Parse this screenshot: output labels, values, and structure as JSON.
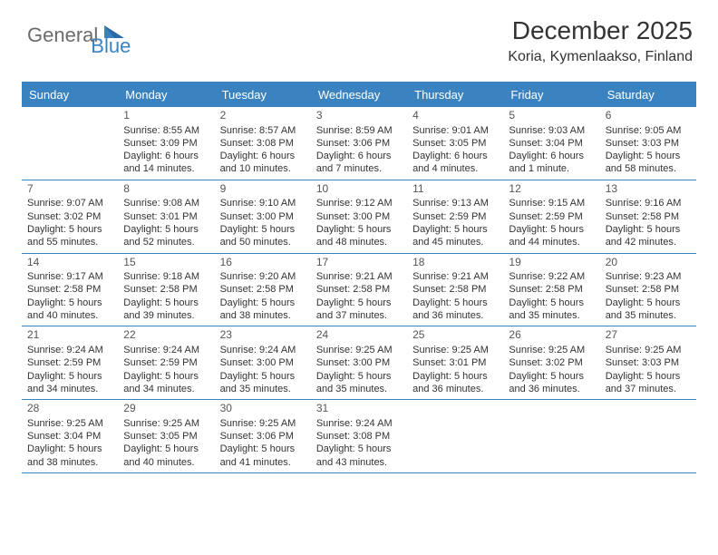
{
  "logo": {
    "word1": "General",
    "word2": "Blue"
  },
  "header": {
    "title": "December 2025",
    "location": "Koria, Kymenlaakso, Finland"
  },
  "style": {
    "accent": "#3b83c0",
    "accent_dark": "#2b6aa8",
    "text": "#333333",
    "logo_gray": "#6b6b6b",
    "bg": "#ffffff",
    "header_font_size": 28,
    "subtitle_font_size": 16,
    "dayhead_font_size": 13,
    "cell_font_size": 11,
    "daynum_font_size": 12
  },
  "days_of_week": [
    "Sunday",
    "Monday",
    "Tuesday",
    "Wednesday",
    "Thursday",
    "Friday",
    "Saturday"
  ],
  "weeks": [
    [
      {
        "empty": true
      },
      {
        "n": "1",
        "sr": "8:55 AM",
        "ss": "3:09 PM",
        "dl": "6 hours and 14 minutes."
      },
      {
        "n": "2",
        "sr": "8:57 AM",
        "ss": "3:08 PM",
        "dl": "6 hours and 10 minutes."
      },
      {
        "n": "3",
        "sr": "8:59 AM",
        "ss": "3:06 PM",
        "dl": "6 hours and 7 minutes."
      },
      {
        "n": "4",
        "sr": "9:01 AM",
        "ss": "3:05 PM",
        "dl": "6 hours and 4 minutes."
      },
      {
        "n": "5",
        "sr": "9:03 AM",
        "ss": "3:04 PM",
        "dl": "6 hours and 1 minute."
      },
      {
        "n": "6",
        "sr": "9:05 AM",
        "ss": "3:03 PM",
        "dl": "5 hours and 58 minutes."
      }
    ],
    [
      {
        "n": "7",
        "sr": "9:07 AM",
        "ss": "3:02 PM",
        "dl": "5 hours and 55 minutes."
      },
      {
        "n": "8",
        "sr": "9:08 AM",
        "ss": "3:01 PM",
        "dl": "5 hours and 52 minutes."
      },
      {
        "n": "9",
        "sr": "9:10 AM",
        "ss": "3:00 PM",
        "dl": "5 hours and 50 minutes."
      },
      {
        "n": "10",
        "sr": "9:12 AM",
        "ss": "3:00 PM",
        "dl": "5 hours and 48 minutes."
      },
      {
        "n": "11",
        "sr": "9:13 AM",
        "ss": "2:59 PM",
        "dl": "5 hours and 45 minutes."
      },
      {
        "n": "12",
        "sr": "9:15 AM",
        "ss": "2:59 PM",
        "dl": "5 hours and 44 minutes."
      },
      {
        "n": "13",
        "sr": "9:16 AM",
        "ss": "2:58 PM",
        "dl": "5 hours and 42 minutes."
      }
    ],
    [
      {
        "n": "14",
        "sr": "9:17 AM",
        "ss": "2:58 PM",
        "dl": "5 hours and 40 minutes."
      },
      {
        "n": "15",
        "sr": "9:18 AM",
        "ss": "2:58 PM",
        "dl": "5 hours and 39 minutes."
      },
      {
        "n": "16",
        "sr": "9:20 AM",
        "ss": "2:58 PM",
        "dl": "5 hours and 38 minutes."
      },
      {
        "n": "17",
        "sr": "9:21 AM",
        "ss": "2:58 PM",
        "dl": "5 hours and 37 minutes."
      },
      {
        "n": "18",
        "sr": "9:21 AM",
        "ss": "2:58 PM",
        "dl": "5 hours and 36 minutes."
      },
      {
        "n": "19",
        "sr": "9:22 AM",
        "ss": "2:58 PM",
        "dl": "5 hours and 35 minutes."
      },
      {
        "n": "20",
        "sr": "9:23 AM",
        "ss": "2:58 PM",
        "dl": "5 hours and 35 minutes."
      }
    ],
    [
      {
        "n": "21",
        "sr": "9:24 AM",
        "ss": "2:59 PM",
        "dl": "5 hours and 34 minutes."
      },
      {
        "n": "22",
        "sr": "9:24 AM",
        "ss": "2:59 PM",
        "dl": "5 hours and 34 minutes."
      },
      {
        "n": "23",
        "sr": "9:24 AM",
        "ss": "3:00 PM",
        "dl": "5 hours and 35 minutes."
      },
      {
        "n": "24",
        "sr": "9:25 AM",
        "ss": "3:00 PM",
        "dl": "5 hours and 35 minutes."
      },
      {
        "n": "25",
        "sr": "9:25 AM",
        "ss": "3:01 PM",
        "dl": "5 hours and 36 minutes."
      },
      {
        "n": "26",
        "sr": "9:25 AM",
        "ss": "3:02 PM",
        "dl": "5 hours and 36 minutes."
      },
      {
        "n": "27",
        "sr": "9:25 AM",
        "ss": "3:03 PM",
        "dl": "5 hours and 37 minutes."
      }
    ],
    [
      {
        "n": "28",
        "sr": "9:25 AM",
        "ss": "3:04 PM",
        "dl": "5 hours and 38 minutes."
      },
      {
        "n": "29",
        "sr": "9:25 AM",
        "ss": "3:05 PM",
        "dl": "5 hours and 40 minutes."
      },
      {
        "n": "30",
        "sr": "9:25 AM",
        "ss": "3:06 PM",
        "dl": "5 hours and 41 minutes."
      },
      {
        "n": "31",
        "sr": "9:24 AM",
        "ss": "3:08 PM",
        "dl": "5 hours and 43 minutes."
      },
      {
        "empty": true
      },
      {
        "empty": true
      },
      {
        "empty": true
      }
    ]
  ],
  "labels": {
    "sunrise": "Sunrise:",
    "sunset": "Sunset:",
    "daylight": "Daylight:"
  }
}
